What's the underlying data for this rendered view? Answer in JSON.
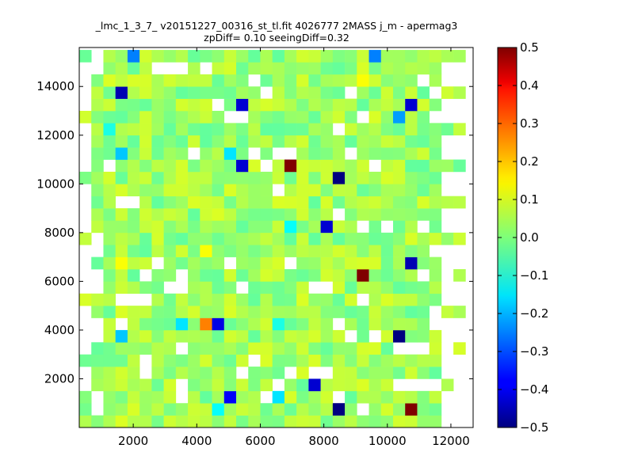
{
  "chart_data": {
    "type": "heatmap",
    "title_line1": "_lmc_1_3_7_ v20151227_00316_st_tl.fit 4026777 2MASS j_m - apermag3",
    "title_line2": "zpDiff= 0.10 seeingDiff=0.32",
    "xlabel": "",
    "ylabel": "",
    "xlim": [
      300,
      12700
    ],
    "ylim": [
      0,
      15600
    ],
    "x_ticks": [
      2000,
      4000,
      6000,
      8000,
      10000,
      12000
    ],
    "y_ticks": [
      2000,
      4000,
      6000,
      8000,
      10000,
      12000,
      14000
    ],
    "x_tick_labels": [
      "2000",
      "4000",
      "6000",
      "8000",
      "10000",
      "12000"
    ],
    "y_tick_labels": [
      "2000",
      "4000",
      "6000",
      "8000",
      "10000",
      "12000",
      "14000"
    ],
    "grid": false,
    "colormap": "jet",
    "colorbar": {
      "min": -0.5,
      "max": 0.5,
      "ticks": [
        0.5,
        0.4,
        0.3,
        0.2,
        0.1,
        0.0,
        -0.1,
        -0.2,
        -0.3,
        -0.4,
        -0.5
      ],
      "tick_labels": [
        "0.5",
        "0.4",
        "0.3",
        "0.2",
        "0.1",
        "0.0",
        "−0.1",
        "−0.2",
        "−0.3",
        "−0.4",
        "−0.5"
      ]
    },
    "cells": {
      "x0": 300,
      "dx": 380,
      "y0": 0,
      "dy": 500,
      "ncols": 32,
      "nrows": 31,
      "default_value": 0.03,
      "notable": [
        {
          "x": 7100,
          "y": 10900,
          "value": 0.5
        },
        {
          "x": 9400,
          "y": 6200,
          "value": 0.5
        },
        {
          "x": 10900,
          "y": 700,
          "value": 0.5
        },
        {
          "x": 4300,
          "y": 4100,
          "value": 0.25
        },
        {
          "x": 8600,
          "y": 10000,
          "value": -0.5
        },
        {
          "x": 10200,
          "y": 3600,
          "value": -0.5
        },
        {
          "x": 8600,
          "y": 700,
          "value": -0.5
        },
        {
          "x": 1600,
          "y": 13600,
          "value": -0.45
        },
        {
          "x": 5500,
          "y": 13200,
          "value": -0.42
        },
        {
          "x": 10600,
          "y": 13200,
          "value": -0.42
        },
        {
          "x": 5500,
          "y": 10500,
          "value": -0.42
        },
        {
          "x": 8100,
          "y": 8300,
          "value": -0.42
        },
        {
          "x": 10800,
          "y": 6700,
          "value": -0.45
        },
        {
          "x": 4700,
          "y": 4100,
          "value": -0.4
        },
        {
          "x": 7800,
          "y": 1700,
          "value": -0.42
        },
        {
          "x": 5200,
          "y": 1200,
          "value": -0.38
        },
        {
          "x": 1900,
          "y": 15400,
          "value": -0.25
        },
        {
          "x": 9500,
          "y": 15400,
          "value": -0.25
        },
        {
          "x": 10200,
          "y": 12700,
          "value": -0.22
        },
        {
          "x": 1600,
          "y": 11000,
          "value": -0.18
        },
        {
          "x": 5000,
          "y": 11000,
          "value": -0.15
        },
        {
          "x": 7000,
          "y": 8000,
          "value": -0.12
        },
        {
          "x": 1600,
          "y": 3600,
          "value": -0.18
        },
        {
          "x": 3400,
          "y": 4100,
          "value": -0.15
        },
        {
          "x": 6600,
          "y": 4100,
          "value": -0.1
        },
        {
          "x": 6600,
          "y": 1200,
          "value": -0.15
        },
        {
          "x": 4700,
          "y": 700,
          "value": -0.12
        },
        {
          "x": 1300,
          "y": 12200,
          "value": -0.1
        },
        {
          "x": 9400,
          "y": 14000,
          "value": 0.12
        },
        {
          "x": 1600,
          "y": 6700,
          "value": 0.12
        },
        {
          "x": 4100,
          "y": 7200,
          "value": 0.12
        }
      ],
      "missing": [
        [
          700,
          15400
        ],
        [
          1300,
          10900
        ],
        [
          1600,
          9000
        ],
        [
          2000,
          9000
        ],
        [
          2400,
          6200
        ],
        [
          2700,
          6700
        ],
        [
          2700,
          14600
        ],
        [
          3100,
          14600
        ],
        [
          3500,
          14600
        ],
        [
          4100,
          14600
        ],
        [
          4700,
          13200
        ],
        [
          5000,
          12700
        ],
        [
          5300,
          12700
        ],
        [
          5700,
          14100
        ],
        [
          6200,
          13600
        ],
        [
          4000,
          11400
        ],
        [
          5900,
          11400
        ],
        [
          6500,
          11400
        ],
        [
          6900,
          11000
        ],
        [
          6000,
          10500
        ],
        [
          8400,
          12200
        ],
        [
          9000,
          13600
        ],
        [
          9400,
          12700
        ],
        [
          9000,
          11400
        ],
        [
          9600,
          10500
        ],
        [
          11100,
          14100
        ],
        [
          11600,
          13600
        ],
        [
          11600,
          12700
        ],
        [
          6500,
          9600
        ],
        [
          8600,
          8500
        ],
        [
          9200,
          8000
        ],
        [
          10100,
          8000
        ],
        [
          11000,
          8000
        ],
        [
          11700,
          8000
        ],
        [
          700,
          7600
        ],
        [
          700,
          7200
        ],
        [
          11600,
          7200
        ],
        [
          12100,
          7200
        ],
        [
          12300,
          6700
        ],
        [
          11700,
          6700
        ],
        [
          11200,
          6200
        ],
        [
          11700,
          6200
        ],
        [
          700,
          6200
        ],
        [
          700,
          5700
        ],
        [
          1600,
          5300
        ],
        [
          1900,
          5300
        ],
        [
          2200,
          5300
        ],
        [
          3100,
          5700
        ],
        [
          3600,
          5700
        ],
        [
          3600,
          6200
        ],
        [
          5000,
          6700
        ],
        [
          5300,
          5700
        ],
        [
          6900,
          6700
        ],
        [
          7800,
          5700
        ],
        [
          8100,
          5700
        ],
        [
          9400,
          5300
        ],
        [
          700,
          4100
        ],
        [
          700,
          3600
        ],
        [
          1600,
          4100
        ],
        [
          11600,
          4600
        ],
        [
          11600,
          4100
        ],
        [
          12300,
          4100
        ],
        [
          12300,
          3600
        ],
        [
          10200,
          3100
        ],
        [
          10700,
          3100
        ],
        [
          11200,
          3100
        ],
        [
          11700,
          3100
        ],
        [
          8600,
          4100
        ],
        [
          8900,
          3600
        ],
        [
          9600,
          3600
        ],
        [
          3600,
          3100
        ],
        [
          2400,
          2700
        ],
        [
          2400,
          2200
        ],
        [
          3400,
          1700
        ],
        [
          3500,
          1200
        ],
        [
          5700,
          2700
        ],
        [
          5300,
          2200
        ],
        [
          6000,
          1200
        ],
        [
          6500,
          1700
        ],
        [
          6900,
          2200
        ],
        [
          7800,
          2200
        ],
        [
          8100,
          2200
        ],
        [
          8300,
          1200
        ],
        [
          10200,
          1700
        ],
        [
          10600,
          1700
        ],
        [
          11000,
          1700
        ],
        [
          11600,
          1700
        ],
        [
          700,
          1200
        ],
        [
          700,
          700
        ],
        [
          12100,
          1200
        ],
        [
          12100,
          700
        ],
        [
          12300,
          1700
        ],
        [
          11900,
          200
        ],
        [
          12300,
          200
        ],
        [
          9400,
          700
        ]
      ]
    }
  }
}
